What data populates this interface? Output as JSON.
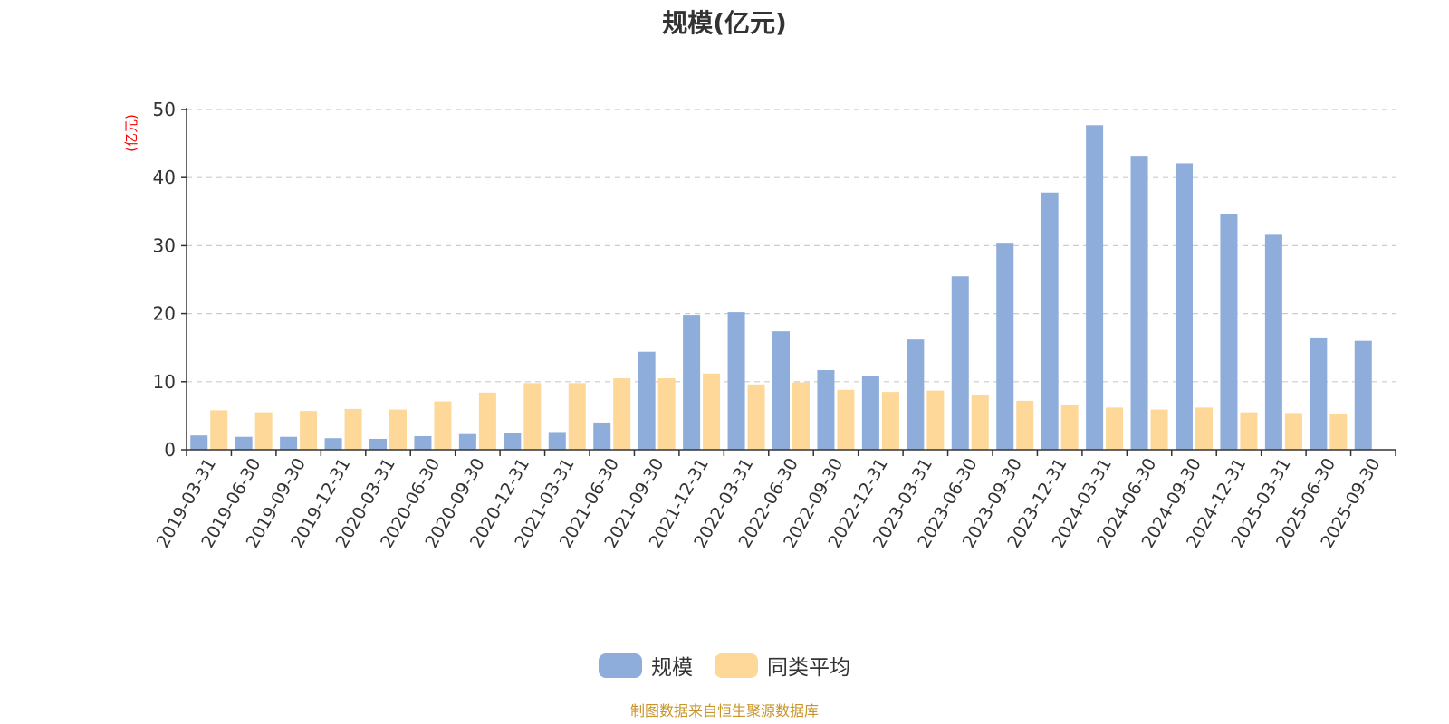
{
  "title": "规模(亿元)",
  "source_text": "制图数据来自恒生聚源数据库",
  "colors": {
    "scale": "#8eadda",
    "avg": "#fdd899",
    "axis": "#333333",
    "grid": "#cccccc",
    "ylabel": "#ff0000"
  },
  "legend": [
    {
      "label": "规模",
      "color": "#8eadda"
    },
    {
      "label": "同类平均",
      "color": "#fdd899"
    }
  ],
  "chart_data": {
    "type": "bar",
    "title": "规模(亿元)",
    "ylabel": "(亿元)",
    "xlabel": "",
    "ylim": [
      0,
      50
    ],
    "yticks": [
      0,
      10,
      20,
      30,
      40,
      50
    ],
    "grid": true,
    "legend_position": "bottom",
    "categories": [
      "2019-03-31",
      "2019-06-30",
      "2019-09-30",
      "2019-12-31",
      "2020-03-31",
      "2020-06-30",
      "2020-09-30",
      "2020-12-31",
      "2021-03-31",
      "2021-06-30",
      "2021-09-30",
      "2021-12-31",
      "2022-03-31",
      "2022-06-30",
      "2022-09-30",
      "2022-12-31",
      "2023-03-31",
      "2023-06-30",
      "2023-09-30",
      "2023-12-31",
      "2024-03-31",
      "2024-06-30",
      "2024-09-30",
      "2024-12-31",
      "2025-03-31",
      "2025-06-30",
      "2025-09-30"
    ],
    "series": [
      {
        "name": "规模",
        "values": [
          2.1,
          1.9,
          1.9,
          1.7,
          1.6,
          2.0,
          2.3,
          2.4,
          2.6,
          4.0,
          14.4,
          19.8,
          20.2,
          17.4,
          11.7,
          10.8,
          16.2,
          25.5,
          30.3,
          37.8,
          47.7,
          43.2,
          42.1,
          34.7,
          31.6,
          16.5,
          16.0
        ]
      },
      {
        "name": "同类平均",
        "values": [
          5.8,
          5.5,
          5.7,
          6.0,
          5.9,
          7.1,
          8.4,
          9.8,
          9.8,
          10.5,
          10.5,
          11.2,
          9.6,
          9.9,
          8.8,
          8.5,
          8.7,
          8.0,
          7.2,
          6.6,
          6.2,
          5.9,
          6.2,
          5.5,
          5.4,
          5.3,
          null
        ]
      }
    ]
  }
}
